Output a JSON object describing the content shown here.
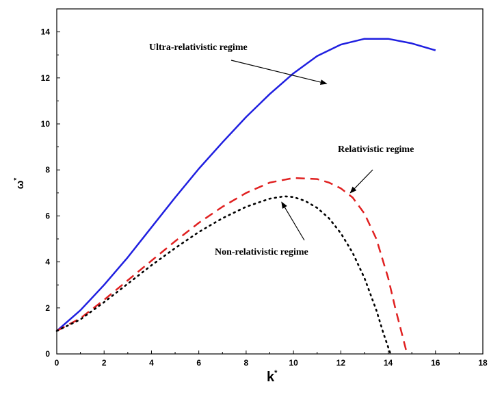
{
  "chart_data": {
    "type": "line",
    "xlabel": "k",
    "xlabel_superscript": "*",
    "ylabel": "ω",
    "ylabel_superscript": "*",
    "xlim": [
      0,
      18
    ],
    "ylim": [
      0,
      15
    ],
    "xticks": [
      0,
      2,
      4,
      6,
      8,
      10,
      12,
      14,
      16,
      18
    ],
    "yticks": [
      0,
      2,
      4,
      6,
      8,
      10,
      12,
      14
    ],
    "grid": false,
    "legend": "none",
    "series": [
      {
        "color": "#1f1fe0",
        "style": "solid",
        "x": [
          0,
          1,
          2,
          3,
          4,
          5,
          6,
          7,
          8,
          9,
          10,
          11,
          12,
          13,
          14,
          15,
          16
        ],
        "y": [
          1.0,
          1.9,
          3.0,
          4.2,
          5.5,
          6.8,
          8.05,
          9.2,
          10.3,
          11.3,
          12.2,
          12.95,
          13.45,
          13.7,
          13.7,
          13.5,
          13.2
        ]
      },
      {
        "color": "#e02020",
        "style": "dashed",
        "x": [
          0,
          1,
          2,
          3,
          4,
          5,
          6,
          7,
          8,
          9,
          10,
          11,
          11.5,
          12,
          12.5,
          13,
          13.5,
          14,
          14.3,
          14.6,
          14.8
        ],
        "y": [
          1.0,
          1.55,
          2.35,
          3.2,
          4.05,
          4.9,
          5.7,
          6.4,
          7.0,
          7.45,
          7.65,
          7.6,
          7.45,
          7.2,
          6.8,
          6.1,
          5.0,
          3.3,
          2.0,
          0.8,
          0.0
        ]
      },
      {
        "color": "#000000",
        "style": "dotted",
        "x": [
          0,
          1,
          2,
          3,
          4,
          5,
          6,
          7,
          8,
          9,
          9.6,
          10,
          10.5,
          11,
          11.5,
          12,
          12.5,
          13,
          13.5,
          13.8,
          14.1
        ],
        "y": [
          1.0,
          1.5,
          2.25,
          3.05,
          3.85,
          4.6,
          5.3,
          5.9,
          6.4,
          6.75,
          6.85,
          6.82,
          6.65,
          6.35,
          5.9,
          5.25,
          4.4,
          3.3,
          1.9,
          0.9,
          0.0
        ]
      }
    ],
    "annotations": [
      {
        "text": "Ultra-relativistic regime",
        "arrow_to": [
          11.4,
          11.75
        ]
      },
      {
        "text": "Relativistic regime",
        "arrow_to": [
          12.4,
          7.0
        ]
      },
      {
        "text": "Non-relativistic regime",
        "arrow_to": [
          9.5,
          6.6
        ]
      }
    ]
  }
}
